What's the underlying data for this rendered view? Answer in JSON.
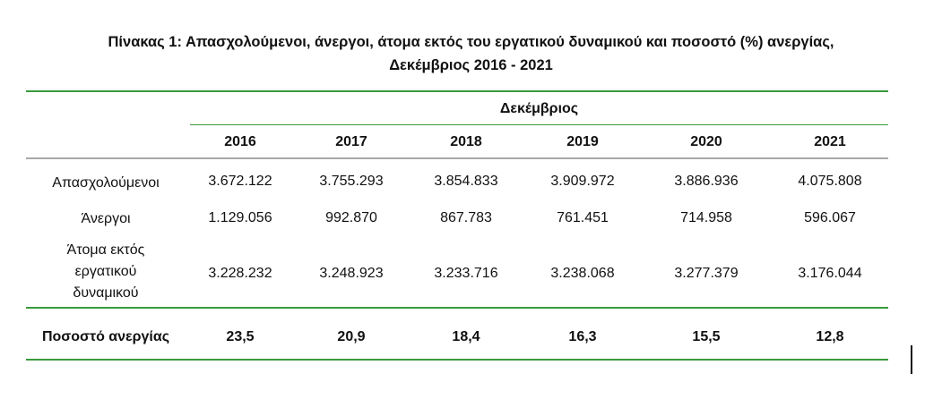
{
  "title": {
    "line1": "Πίνακας 1: Απασχολούμενοι, άνεργοι, άτομα εκτός του εργατικού δυναμικού και ποσοστό (%) ανεργίας,",
    "line2": "Δεκέμβριος 2016 - 2021"
  },
  "table": {
    "group_header": "Δεκέμβριος",
    "years": [
      "2016",
      "2017",
      "2018",
      "2019",
      "2020",
      "2021"
    ],
    "rows": [
      {
        "label_lines": [
          "Απασχολούμενοι"
        ],
        "values": [
          "3.672.122",
          "3.755.293",
          "3.854.833",
          "3.909.972",
          "3.886.936",
          "4.075.808"
        ]
      },
      {
        "label_lines": [
          "Άνεργοι"
        ],
        "values": [
          "1.129.056",
          "992.870",
          "867.783",
          "761.451",
          "714.958",
          "596.067"
        ]
      },
      {
        "label_lines": [
          "Άτομα εκτός",
          "εργατικού",
          "δυναμικού"
        ],
        "values": [
          "3.228.232",
          "3.248.923",
          "3.233.716",
          "3.238.068",
          "3.277.379",
          "3.176.044"
        ]
      }
    ],
    "summary_row": {
      "label": "Ποσοστό ανεργίας",
      "values": [
        "23,5",
        "20,9",
        "18,4",
        "16,3",
        "15,5",
        "12,8"
      ]
    }
  },
  "colors": {
    "rule_green": "#3a9a3a",
    "rule_grey": "#a8a8a8"
  }
}
